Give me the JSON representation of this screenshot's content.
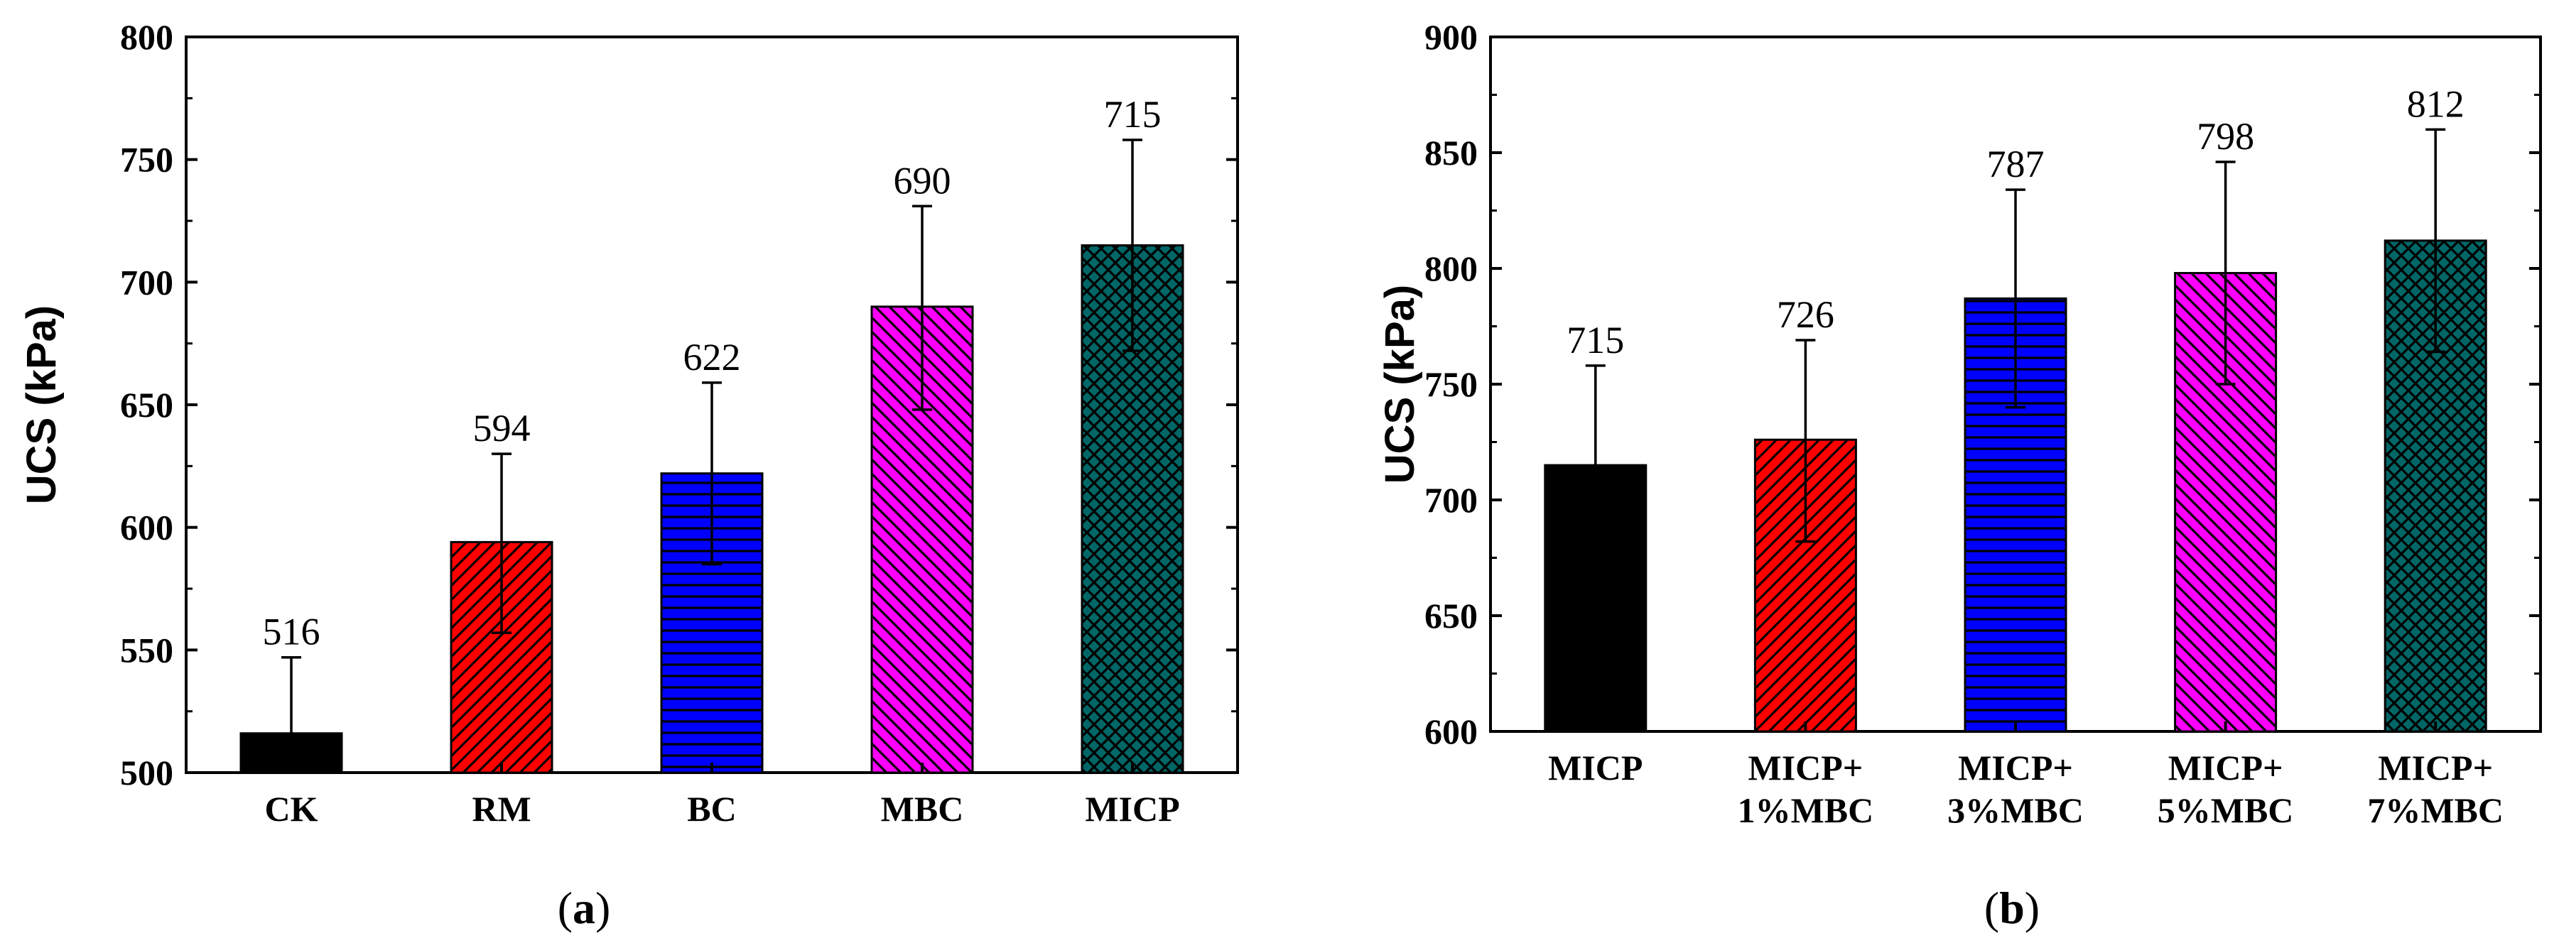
{
  "figure": {
    "panel_labels": [
      {
        "open": "(",
        "letter": "a",
        "close": ")"
      },
      {
        "open": "(",
        "letter": "b",
        "close": ")"
      }
    ]
  },
  "chart_data": [
    {
      "type": "bar",
      "panel": "(a)",
      "title": "",
      "xlabel": "",
      "ylabel": "UCS (kPa)",
      "ylim": [
        500,
        800
      ],
      "yticks": [
        500,
        550,
        600,
        650,
        700,
        750,
        800
      ],
      "categories": [
        [
          "CK"
        ],
        [
          "RM"
        ],
        [
          "BC"
        ],
        [
          "MBC"
        ],
        [
          "MICP"
        ]
      ],
      "values": [
        516,
        594,
        622,
        690,
        715
      ],
      "error_upper": [
        547,
        630,
        659,
        731,
        758
      ],
      "error_lower": [
        null,
        557,
        585,
        648,
        672
      ],
      "data_labels": [
        "516",
        "594",
        "622",
        "690",
        "715"
      ],
      "colors": [
        "#000000",
        "#ff0000",
        "#0000ff",
        "#ff00ff",
        "#006666"
      ],
      "patterns": [
        "solid",
        "diag-right",
        "horizontal",
        "diag-left",
        "crosshatch"
      ],
      "grid": false,
      "legend": "none"
    },
    {
      "type": "bar",
      "panel": "(b)",
      "title": "",
      "xlabel": "",
      "ylabel": "UCS (kPa)",
      "ylim": [
        600,
        900
      ],
      "yticks": [
        600,
        650,
        700,
        750,
        800,
        850,
        900
      ],
      "categories": [
        [
          "MICP"
        ],
        [
          "MICP+",
          "1%MBC"
        ],
        [
          "MICP+",
          "3%MBC"
        ],
        [
          "MICP+",
          "5%MBC"
        ],
        [
          "MICP+",
          "7%MBC"
        ]
      ],
      "values": [
        715,
        726,
        787,
        798,
        812
      ],
      "error_upper": [
        758,
        769,
        834,
        846,
        860
      ],
      "error_lower": [
        null,
        682,
        740,
        750,
        764
      ],
      "data_labels": [
        "715",
        "726",
        "787",
        "798",
        "812"
      ],
      "colors": [
        "#000000",
        "#ff0000",
        "#0000ff",
        "#ff00ff",
        "#006666"
      ],
      "patterns": [
        "solid",
        "diag-right",
        "horizontal",
        "diag-left",
        "crosshatch"
      ],
      "grid": false,
      "legend": "none"
    }
  ]
}
